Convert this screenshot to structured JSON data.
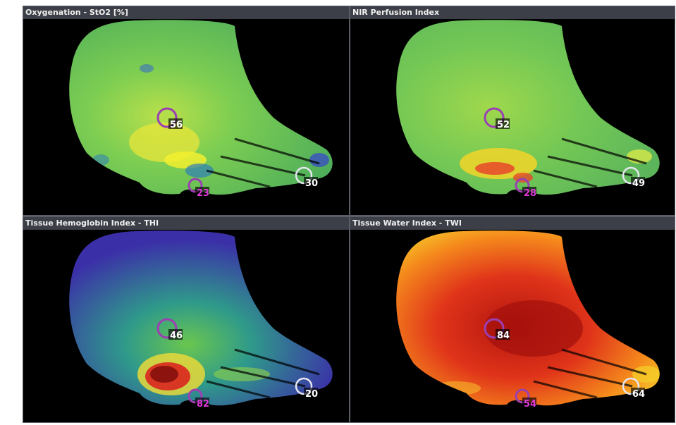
{
  "panels": [
    {
      "title": "Oxygenation - StO2 [%]",
      "colormap": "oxygenation",
      "regions": [
        {
          "value": "56",
          "ring_color": "#9b3fb3",
          "text_color": "#ffffff"
        },
        {
          "value": "23",
          "ring_color": "#9b3fb3",
          "text_color": "#e03ad8"
        },
        {
          "value": "30",
          "ring_color": "#e6e6f0",
          "text_color": "#ffffff"
        }
      ]
    },
    {
      "title": "NIR Perfusion Index",
      "colormap": "perfusion",
      "regions": [
        {
          "value": "52",
          "ring_color": "#9b3fb3",
          "text_color": "#ffffff"
        },
        {
          "value": "28",
          "ring_color": "#9b3fb3",
          "text_color": "#e03ad8"
        },
        {
          "value": "49",
          "ring_color": "#e6e6f0",
          "text_color": "#ffffff"
        }
      ]
    },
    {
      "title": "Tissue Hemoglobin Index - THI",
      "colormap": "hemoglobin",
      "regions": [
        {
          "value": "46",
          "ring_color": "#9b3fb3",
          "text_color": "#ffffff"
        },
        {
          "value": "82",
          "ring_color": "#9b3fb3",
          "text_color": "#e03ad8"
        },
        {
          "value": "20",
          "ring_color": "#e6e6f0",
          "text_color": "#ffffff"
        }
      ]
    },
    {
      "title": "Tissue Water Index - TWI",
      "colormap": "water",
      "regions": [
        {
          "value": "84",
          "ring_color": "#9b3fb3",
          "text_color": "#ffffff"
        },
        {
          "value": "54",
          "ring_color": "#9b3fb3",
          "text_color": "#e03ad8"
        },
        {
          "value": "64",
          "ring_color": "#e6e6f0",
          "text_color": "#ffffff"
        }
      ]
    }
  ]
}
